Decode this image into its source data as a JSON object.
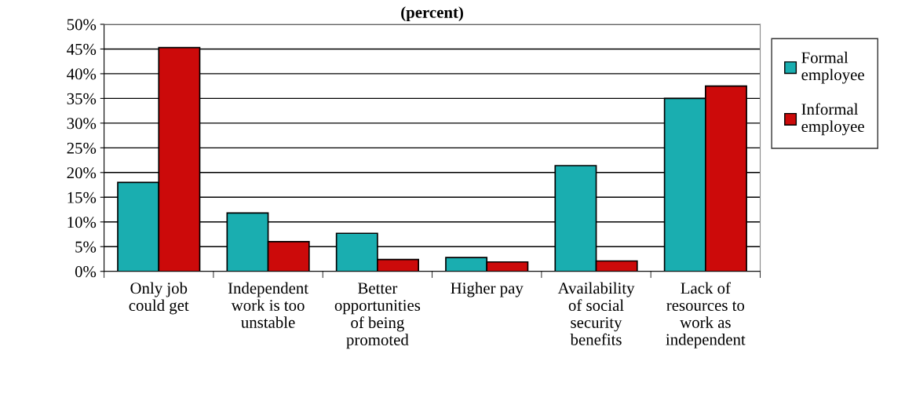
{
  "chart_data": {
    "type": "bar",
    "title": "(percent)",
    "categories": [
      "Only job\ncould get",
      "Independent\nwork is too\nunstable",
      "Better\nopportunities\nof being\npromoted",
      "Higher pay",
      "Availability\nof social\nsecurity\nbenefits",
      "Lack of\nresources to\nwork as\nindependent"
    ],
    "series": [
      {
        "name": "Formal\nemployee",
        "color": "#1aaeb0",
        "values": [
          18.0,
          11.8,
          7.7,
          2.8,
          21.4,
          35.0
        ]
      },
      {
        "name": "Informal\nemployee",
        "color": "#cc0a0a",
        "values": [
          45.3,
          6.0,
          2.4,
          1.9,
          2.1,
          37.5
        ]
      }
    ],
    "ylim": [
      0,
      50
    ],
    "yticks": [
      {
        "value": 0,
        "label": "0%"
      },
      {
        "value": 5,
        "label": "5%"
      },
      {
        "value": 10,
        "label": "10%"
      },
      {
        "value": 15,
        "label": "15%"
      },
      {
        "value": 20,
        "label": "20%"
      },
      {
        "value": 25,
        "label": "25%"
      },
      {
        "value": 30,
        "label": "30%"
      },
      {
        "value": 35,
        "label": "35%"
      },
      {
        "value": 40,
        "label": "40%"
      },
      {
        "value": 45,
        "label": "45%"
      },
      {
        "value": 50,
        "label": "50%"
      }
    ],
    "grid": "y",
    "legend": "right"
  }
}
